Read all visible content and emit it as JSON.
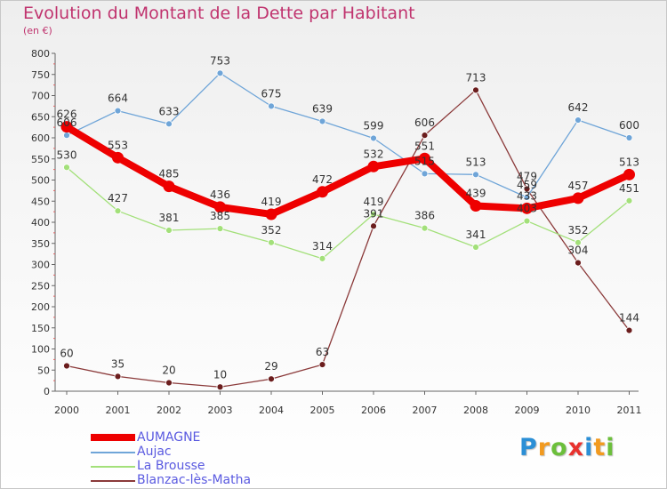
{
  "chart_data": {
    "type": "line",
    "title": "Evolution du Montant de la Dette par Habitant",
    "subtitle": "(en €)",
    "xlabel": "",
    "ylabel": "",
    "categories": [
      "2000",
      "2001",
      "2002",
      "2003",
      "2004",
      "2005",
      "2006",
      "2007",
      "2008",
      "2009",
      "2010",
      "2011"
    ],
    "ylim": [
      0,
      800
    ],
    "yticks": [
      0,
      50,
      100,
      150,
      200,
      250,
      300,
      350,
      400,
      450,
      500,
      550,
      600,
      650,
      700,
      750,
      800
    ],
    "grid": false,
    "legend_position": "bottom-left",
    "series": [
      {
        "name": "AUMAGNE",
        "color": "#ee0000",
        "values": [
          626,
          553,
          485,
          436,
          419,
          472,
          532,
          551,
          439,
          433,
          457,
          513
        ],
        "labels": [
          "626",
          "553",
          "485",
          "436",
          "419",
          "472",
          "532",
          "551",
          "439",
          "433",
          "457",
          "513"
        ]
      },
      {
        "name": "Aujac",
        "color": "#6fa5d8",
        "values": [
          606,
          664,
          633,
          753,
          675,
          639,
          599,
          515,
          513,
          459,
          642,
          600
        ],
        "labels": [
          "606",
          "664",
          "633",
          "753",
          "675",
          "639",
          "599",
          "515",
          "513",
          "459",
          "642",
          "600"
        ]
      },
      {
        "name": "La Brousse",
        "color": "#a3e07a",
        "values": [
          530,
          427,
          381,
          385,
          352,
          314,
          419,
          386,
          341,
          403,
          352,
          451
        ],
        "labels": [
          "530",
          "427",
          "381",
          "385",
          "352",
          "314",
          "419",
          "386",
          "341",
          "403",
          "352",
          "451"
        ]
      },
      {
        "name": "Blanzac-lès-Matha",
        "color": "#8b3a3a",
        "values": [
          60,
          35,
          20,
          10,
          29,
          63,
          391,
          606,
          713,
          479,
          304,
          144
        ],
        "labels": [
          "60",
          "35",
          "20",
          "10",
          "29",
          "63",
          "391",
          "606",
          "713",
          "479",
          "304",
          "144"
        ]
      }
    ]
  },
  "logo": {
    "letters": [
      "P",
      "r",
      "o",
      "x",
      "i",
      "t",
      "i"
    ],
    "colors": [
      "#2b8fd6",
      "#f29a1f",
      "#6cbf3b",
      "#e8322e",
      "#2b8fd6",
      "#f29a1f",
      "#6cbf3b"
    ]
  }
}
